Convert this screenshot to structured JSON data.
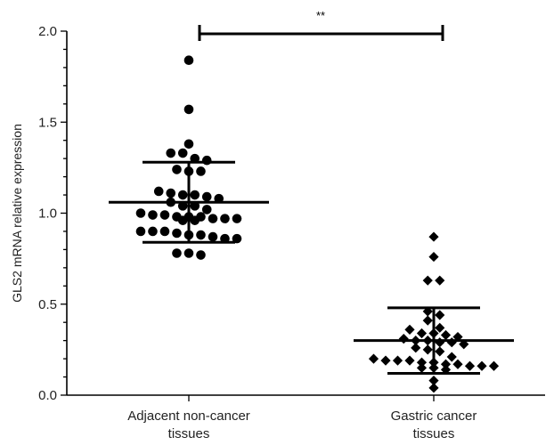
{
  "chart_data": {
    "type": "scatter",
    "title": "",
    "xlabel": "",
    "ylabel": "GLS2 mRNA relative expression",
    "ylim": [
      0,
      2.0
    ],
    "yticks": [
      "0.0",
      "0.5",
      "1.0",
      "1.5",
      "2.0"
    ],
    "ytick_values": [
      0,
      0.5,
      1.0,
      1.5,
      2.0
    ],
    "categories": [
      [
        "Adjacent non-cancer",
        "tissues"
      ],
      [
        "Gastric cancer",
        "tissues"
      ]
    ],
    "series": [
      {
        "category_index": 0,
        "marker": "circle",
        "values": [
          1.84,
          1.57,
          1.38,
          1.33,
          1.33,
          1.3,
          1.29,
          1.24,
          1.23,
          1.23,
          1.12,
          1.11,
          1.1,
          1.1,
          1.09,
          1.08,
          1.06,
          1.04,
          1.04,
          1.02,
          1.0,
          0.99,
          0.99,
          0.98,
          0.98,
          0.98,
          0.97,
          0.97,
          0.97,
          0.96,
          0.96,
          0.9,
          0.9,
          0.9,
          0.89,
          0.88,
          0.88,
          0.87,
          0.86,
          0.86,
          0.78,
          0.78,
          0.77
        ],
        "mean": 1.06,
        "sd_upper": 1.28,
        "sd_lower": 0.84
      },
      {
        "category_index": 1,
        "marker": "diamond",
        "values": [
          0.87,
          0.76,
          0.63,
          0.63,
          0.46,
          0.44,
          0.41,
          0.37,
          0.36,
          0.34,
          0.34,
          0.33,
          0.32,
          0.31,
          0.3,
          0.3,
          0.29,
          0.29,
          0.28,
          0.26,
          0.25,
          0.24,
          0.21,
          0.2,
          0.19,
          0.19,
          0.19,
          0.18,
          0.18,
          0.17,
          0.17,
          0.16,
          0.16,
          0.16,
          0.15,
          0.15,
          0.14,
          0.08,
          0.04
        ],
        "mean": 0.3,
        "sd_upper": 0.48,
        "sd_lower": 0.12
      }
    ],
    "annotation": "**",
    "grid": false,
    "legend": "none"
  }
}
